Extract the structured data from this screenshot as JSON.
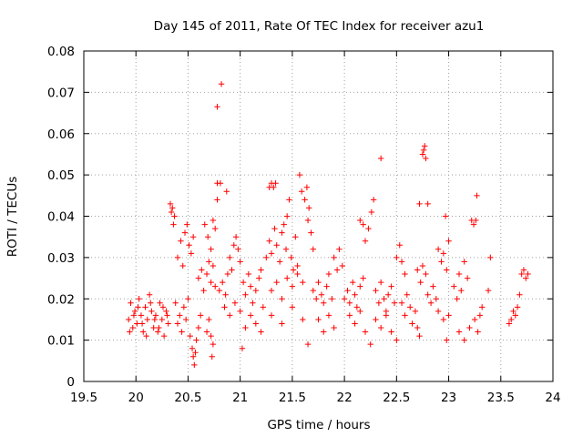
{
  "chart_data": {
    "type": "scatter",
    "title": "Day 145 of 2011, Rate Of TEC Index for receiver azu1",
    "xlabel": "GPS time / hours",
    "ylabel": "ROTI / TECUs",
    "xlim": [
      19.5,
      24.0
    ],
    "ylim": [
      0,
      0.08
    ],
    "grid": true,
    "marker": "+",
    "color": "#ff0000",
    "x_ticks": [
      19.5,
      20.0,
      20.5,
      21.0,
      21.5,
      22.0,
      22.5,
      23.0,
      23.5,
      24.0
    ],
    "x_tick_labels": [
      "19.5",
      "20",
      "20.5",
      "21",
      "21.5",
      "22",
      "22.5",
      "23",
      "23.5",
      "24"
    ],
    "y_ticks": [
      0,
      0.01,
      0.02,
      0.03,
      0.04,
      0.05,
      0.06,
      0.07,
      0.08
    ],
    "y_tick_labels": [
      "0",
      "0.01",
      "0.02",
      "0.03",
      "0.04",
      "0.05",
      "0.06",
      "0.07",
      "0.08"
    ],
    "series": [
      {
        "name": "azu1",
        "points": [
          [
            19.93,
            0.015
          ],
          [
            19.95,
            0.019
          ],
          [
            19.97,
            0.013
          ],
          [
            19.99,
            0.017
          ],
          [
            20.01,
            0.014
          ],
          [
            20.03,
            0.02
          ],
          [
            20.05,
            0.016
          ],
          [
            20.07,
            0.012
          ],
          [
            20.09,
            0.018
          ],
          [
            20.11,
            0.015
          ],
          [
            20.13,
            0.021
          ],
          [
            20.15,
            0.017
          ],
          [
            20.17,
            0.013
          ],
          [
            20.19,
            0.016
          ],
          [
            20.21,
            0.012
          ],
          [
            20.23,
            0.019
          ],
          [
            20.25,
            0.015
          ],
          [
            20.27,
            0.011
          ],
          [
            20.29,
            0.017
          ],
          [
            20.31,
            0.014
          ],
          [
            19.94,
            0.012
          ],
          [
            19.98,
            0.016
          ],
          [
            20.02,
            0.018
          ],
          [
            20.06,
            0.014
          ],
          [
            20.1,
            0.011
          ],
          [
            20.14,
            0.019
          ],
          [
            20.18,
            0.015
          ],
          [
            20.22,
            0.013
          ],
          [
            20.26,
            0.018
          ],
          [
            20.3,
            0.016
          ],
          [
            20.33,
            0.043
          ],
          [
            20.35,
            0.042
          ],
          [
            20.37,
            0.04
          ],
          [
            20.36,
            0.038
          ],
          [
            20.34,
            0.041
          ],
          [
            20.4,
            0.03
          ],
          [
            20.43,
            0.034
          ],
          [
            20.45,
            0.028
          ],
          [
            20.47,
            0.036
          ],
          [
            20.49,
            0.038
          ],
          [
            20.51,
            0.033
          ],
          [
            20.53,
            0.031
          ],
          [
            20.55,
            0.035
          ],
          [
            20.38,
            0.019
          ],
          [
            20.4,
            0.014
          ],
          [
            20.42,
            0.016
          ],
          [
            20.44,
            0.012
          ],
          [
            20.46,
            0.018
          ],
          [
            20.48,
            0.015
          ],
          [
            20.5,
            0.02
          ],
          [
            20.52,
            0.011
          ],
          [
            20.54,
            0.008
          ],
          [
            20.55,
            0.006
          ],
          [
            20.56,
            0.004
          ],
          [
            20.57,
            0.007
          ],
          [
            20.58,
            0.01
          ],
          [
            20.6,
            0.013
          ],
          [
            20.62,
            0.016
          ],
          [
            20.6,
            0.025
          ],
          [
            20.63,
            0.027
          ],
          [
            20.65,
            0.022
          ],
          [
            20.68,
            0.026
          ],
          [
            20.7,
            0.029
          ],
          [
            20.72,
            0.024
          ],
          [
            20.74,
            0.028
          ],
          [
            20.76,
            0.023
          ],
          [
            20.66,
            0.038
          ],
          [
            20.69,
            0.035
          ],
          [
            20.72,
            0.032
          ],
          [
            20.74,
            0.039
          ],
          [
            20.76,
            0.037
          ],
          [
            20.78,
            0.044
          ],
          [
            20.68,
            0.012
          ],
          [
            20.7,
            0.015
          ],
          [
            20.72,
            0.011
          ],
          [
            20.74,
            0.009
          ],
          [
            20.73,
            0.006
          ],
          [
            20.78,
            0.0665
          ],
          [
            20.82,
            0.072
          ],
          [
            20.78,
            0.048
          ],
          [
            20.81,
            0.048
          ],
          [
            20.87,
            0.046
          ],
          [
            20.8,
            0.022
          ],
          [
            20.83,
            0.024
          ],
          [
            20.86,
            0.021
          ],
          [
            20.88,
            0.026
          ],
          [
            20.9,
            0.03
          ],
          [
            20.92,
            0.027
          ],
          [
            20.94,
            0.033
          ],
          [
            20.96,
            0.035
          ],
          [
            20.98,
            0.032
          ],
          [
            20.85,
            0.018
          ],
          [
            20.9,
            0.016
          ],
          [
            20.95,
            0.019
          ],
          [
            21.0,
            0.017
          ],
          [
            21.02,
            0.008
          ],
          [
            21.0,
            0.029
          ],
          [
            21.03,
            0.024
          ],
          [
            21.05,
            0.021
          ],
          [
            21.08,
            0.026
          ],
          [
            21.1,
            0.023
          ],
          [
            21.12,
            0.019
          ],
          [
            21.15,
            0.022
          ],
          [
            21.18,
            0.025
          ],
          [
            21.2,
            0.027
          ],
          [
            21.05,
            0.013
          ],
          [
            21.1,
            0.016
          ],
          [
            21.15,
            0.014
          ],
          [
            21.2,
            0.012
          ],
          [
            21.22,
            0.018
          ],
          [
            21.28,
            0.047
          ],
          [
            21.3,
            0.048
          ],
          [
            21.32,
            0.047
          ],
          [
            21.34,
            0.048
          ],
          [
            21.25,
            0.03
          ],
          [
            21.28,
            0.034
          ],
          [
            21.3,
            0.031
          ],
          [
            21.33,
            0.037
          ],
          [
            21.35,
            0.033
          ],
          [
            21.38,
            0.029
          ],
          [
            21.4,
            0.036
          ],
          [
            21.42,
            0.038
          ],
          [
            21.44,
            0.032
          ],
          [
            21.45,
            0.04
          ],
          [
            21.47,
            0.044
          ],
          [
            21.49,
            0.03
          ],
          [
            21.51,
            0.027
          ],
          [
            21.53,
            0.035
          ],
          [
            21.55,
            0.028
          ],
          [
            21.57,
            0.05
          ],
          [
            21.59,
            0.046
          ],
          [
            21.3,
            0.022
          ],
          [
            21.35,
            0.024
          ],
          [
            21.4,
            0.02
          ],
          [
            21.45,
            0.025
          ],
          [
            21.5,
            0.023
          ],
          [
            21.55,
            0.026
          ],
          [
            21.6,
            0.024
          ],
          [
            21.3,
            0.016
          ],
          [
            21.4,
            0.014
          ],
          [
            21.5,
            0.018
          ],
          [
            21.6,
            0.015
          ],
          [
            21.65,
            0.009
          ],
          [
            21.62,
            0.044
          ],
          [
            21.64,
            0.047
          ],
          [
            21.66,
            0.042
          ],
          [
            21.65,
            0.039
          ],
          [
            21.68,
            0.036
          ],
          [
            21.7,
            0.032
          ],
          [
            21.7,
            0.022
          ],
          [
            21.73,
            0.02
          ],
          [
            21.75,
            0.024
          ],
          [
            21.78,
            0.021
          ],
          [
            21.8,
            0.019
          ],
          [
            21.83,
            0.023
          ],
          [
            21.85,
            0.026
          ],
          [
            21.88,
            0.02
          ],
          [
            21.75,
            0.015
          ],
          [
            21.8,
            0.012
          ],
          [
            21.85,
            0.016
          ],
          [
            21.9,
            0.013
          ],
          [
            21.9,
            0.03
          ],
          [
            21.93,
            0.027
          ],
          [
            21.95,
            0.032
          ],
          [
            21.98,
            0.028
          ],
          [
            22.0,
            0.02
          ],
          [
            22.03,
            0.022
          ],
          [
            22.05,
            0.019
          ],
          [
            22.08,
            0.024
          ],
          [
            22.1,
            0.021
          ],
          [
            22.12,
            0.018
          ],
          [
            22.15,
            0.023
          ],
          [
            22.18,
            0.025
          ],
          [
            22.05,
            0.016
          ],
          [
            22.1,
            0.014
          ],
          [
            22.15,
            0.017
          ],
          [
            22.2,
            0.012
          ],
          [
            22.25,
            0.009
          ],
          [
            22.15,
            0.039
          ],
          [
            22.18,
            0.038
          ],
          [
            22.2,
            0.034
          ],
          [
            22.23,
            0.037
          ],
          [
            22.26,
            0.041
          ],
          [
            22.28,
            0.044
          ],
          [
            22.35,
            0.054
          ],
          [
            22.3,
            0.022
          ],
          [
            22.33,
            0.019
          ],
          [
            22.35,
            0.024
          ],
          [
            22.38,
            0.02
          ],
          [
            22.4,
            0.017
          ],
          [
            22.42,
            0.021
          ],
          [
            22.45,
            0.023
          ],
          [
            22.48,
            0.019
          ],
          [
            22.3,
            0.015
          ],
          [
            22.35,
            0.013
          ],
          [
            22.4,
            0.016
          ],
          [
            22.45,
            0.012
          ],
          [
            22.5,
            0.01
          ],
          [
            22.5,
            0.03
          ],
          [
            22.53,
            0.033
          ],
          [
            22.55,
            0.029
          ],
          [
            22.58,
            0.026
          ],
          [
            22.55,
            0.019
          ],
          [
            22.58,
            0.016
          ],
          [
            22.6,
            0.021
          ],
          [
            22.63,
            0.018
          ],
          [
            22.65,
            0.014
          ],
          [
            22.68,
            0.017
          ],
          [
            22.7,
            0.013
          ],
          [
            22.72,
            0.011
          ],
          [
            22.75,
            0.055
          ],
          [
            22.77,
            0.057
          ],
          [
            22.78,
            0.054
          ],
          [
            22.76,
            0.056
          ],
          [
            22.72,
            0.043
          ],
          [
            22.8,
            0.043
          ],
          [
            22.7,
            0.027
          ],
          [
            22.73,
            0.024
          ],
          [
            22.75,
            0.028
          ],
          [
            22.78,
            0.026
          ],
          [
            22.8,
            0.021
          ],
          [
            22.83,
            0.019
          ],
          [
            22.85,
            0.023
          ],
          [
            22.88,
            0.02
          ],
          [
            22.9,
            0.032
          ],
          [
            22.93,
            0.029
          ],
          [
            22.95,
            0.031
          ],
          [
            22.98,
            0.027
          ],
          [
            23.0,
            0.034
          ],
          [
            22.97,
            0.04
          ],
          [
            22.9,
            0.017
          ],
          [
            22.95,
            0.015
          ],
          [
            23.0,
            0.016
          ],
          [
            22.98,
            0.01
          ],
          [
            23.05,
            0.023
          ],
          [
            23.08,
            0.02
          ],
          [
            23.1,
            0.026
          ],
          [
            23.12,
            0.022
          ],
          [
            23.15,
            0.029
          ],
          [
            23.18,
            0.025
          ],
          [
            23.1,
            0.012
          ],
          [
            23.15,
            0.01
          ],
          [
            23.2,
            0.013
          ],
          [
            23.25,
            0.015
          ],
          [
            23.28,
            0.012
          ],
          [
            23.3,
            0.016
          ],
          [
            23.32,
            0.018
          ],
          [
            23.22,
            0.039
          ],
          [
            23.24,
            0.038
          ],
          [
            23.26,
            0.039
          ],
          [
            23.27,
            0.045
          ],
          [
            23.4,
            0.03
          ],
          [
            23.38,
            0.022
          ],
          [
            23.58,
            0.014
          ],
          [
            23.6,
            0.015
          ],
          [
            23.62,
            0.017
          ],
          [
            23.64,
            0.016
          ],
          [
            23.66,
            0.018
          ],
          [
            23.68,
            0.021
          ],
          [
            23.7,
            0.026
          ],
          [
            23.72,
            0.027
          ],
          [
            23.74,
            0.025
          ],
          [
            23.76,
            0.026
          ]
        ]
      }
    ]
  }
}
